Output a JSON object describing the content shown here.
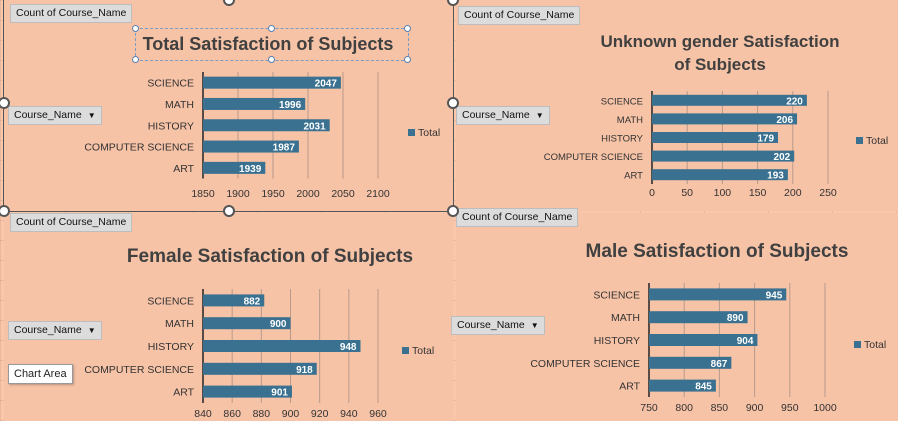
{
  "ui": {
    "count_label": "Count of Course_Name",
    "field_label": "Course_Name",
    "legend_label": "Total",
    "tooltip": "Chart Area"
  },
  "colors": {
    "bar": "#3a7190",
    "axis": "#222222",
    "grid": "#b89a8a",
    "background": "#f7c3a7"
  },
  "chart_data": [
    {
      "type": "bar",
      "title": "Total Satisfaction of Subjects",
      "categories": [
        "SCIENCE",
        "MATH",
        "HISTORY",
        "COMPUTER SCIENCE",
        "ART"
      ],
      "values": [
        2047,
        1996,
        2031,
        1987,
        1939
      ],
      "xlim": [
        1850,
        2100
      ],
      "xticks": [
        "1850",
        "1900",
        "1950",
        "2000",
        "2050",
        "2100"
      ],
      "legend": "Total",
      "legend_position": "right",
      "grid": true
    },
    {
      "type": "bar",
      "title": "Unknown gender Satisfaction of Subjects",
      "categories": [
        "SCIENCE",
        "MATH",
        "HISTORY",
        "COMPUTER SCIENCE",
        "ART"
      ],
      "values": [
        220,
        206,
        179,
        202,
        193
      ],
      "xlim": [
        0,
        250
      ],
      "xticks": [
        "0",
        "50",
        "100",
        "150",
        "200",
        "250"
      ],
      "legend": "Total",
      "legend_position": "right",
      "grid": true
    },
    {
      "type": "bar",
      "title": "Female Satisfaction of Subjects",
      "categories": [
        "SCIENCE",
        "MATH",
        "HISTORY",
        "COMPUTER SCIENCE",
        "ART"
      ],
      "values": [
        882,
        900,
        948,
        918,
        901
      ],
      "xlim": [
        840,
        960
      ],
      "xticks": [
        "840",
        "860",
        "880",
        "900",
        "920",
        "940",
        "960"
      ],
      "legend": "Total",
      "legend_position": "right",
      "grid": true
    },
    {
      "type": "bar",
      "title": "Male Satisfaction of Subjects",
      "categories": [
        "SCIENCE",
        "MATH",
        "HISTORY",
        "COMPUTER SCIENCE",
        "ART"
      ],
      "values": [
        945,
        890,
        904,
        867,
        845
      ],
      "xlim": [
        750,
        1000
      ],
      "xticks": [
        "750",
        "800",
        "850",
        "900",
        "950",
        "1000"
      ],
      "legend": "Total",
      "legend_position": "right",
      "grid": true
    }
  ]
}
